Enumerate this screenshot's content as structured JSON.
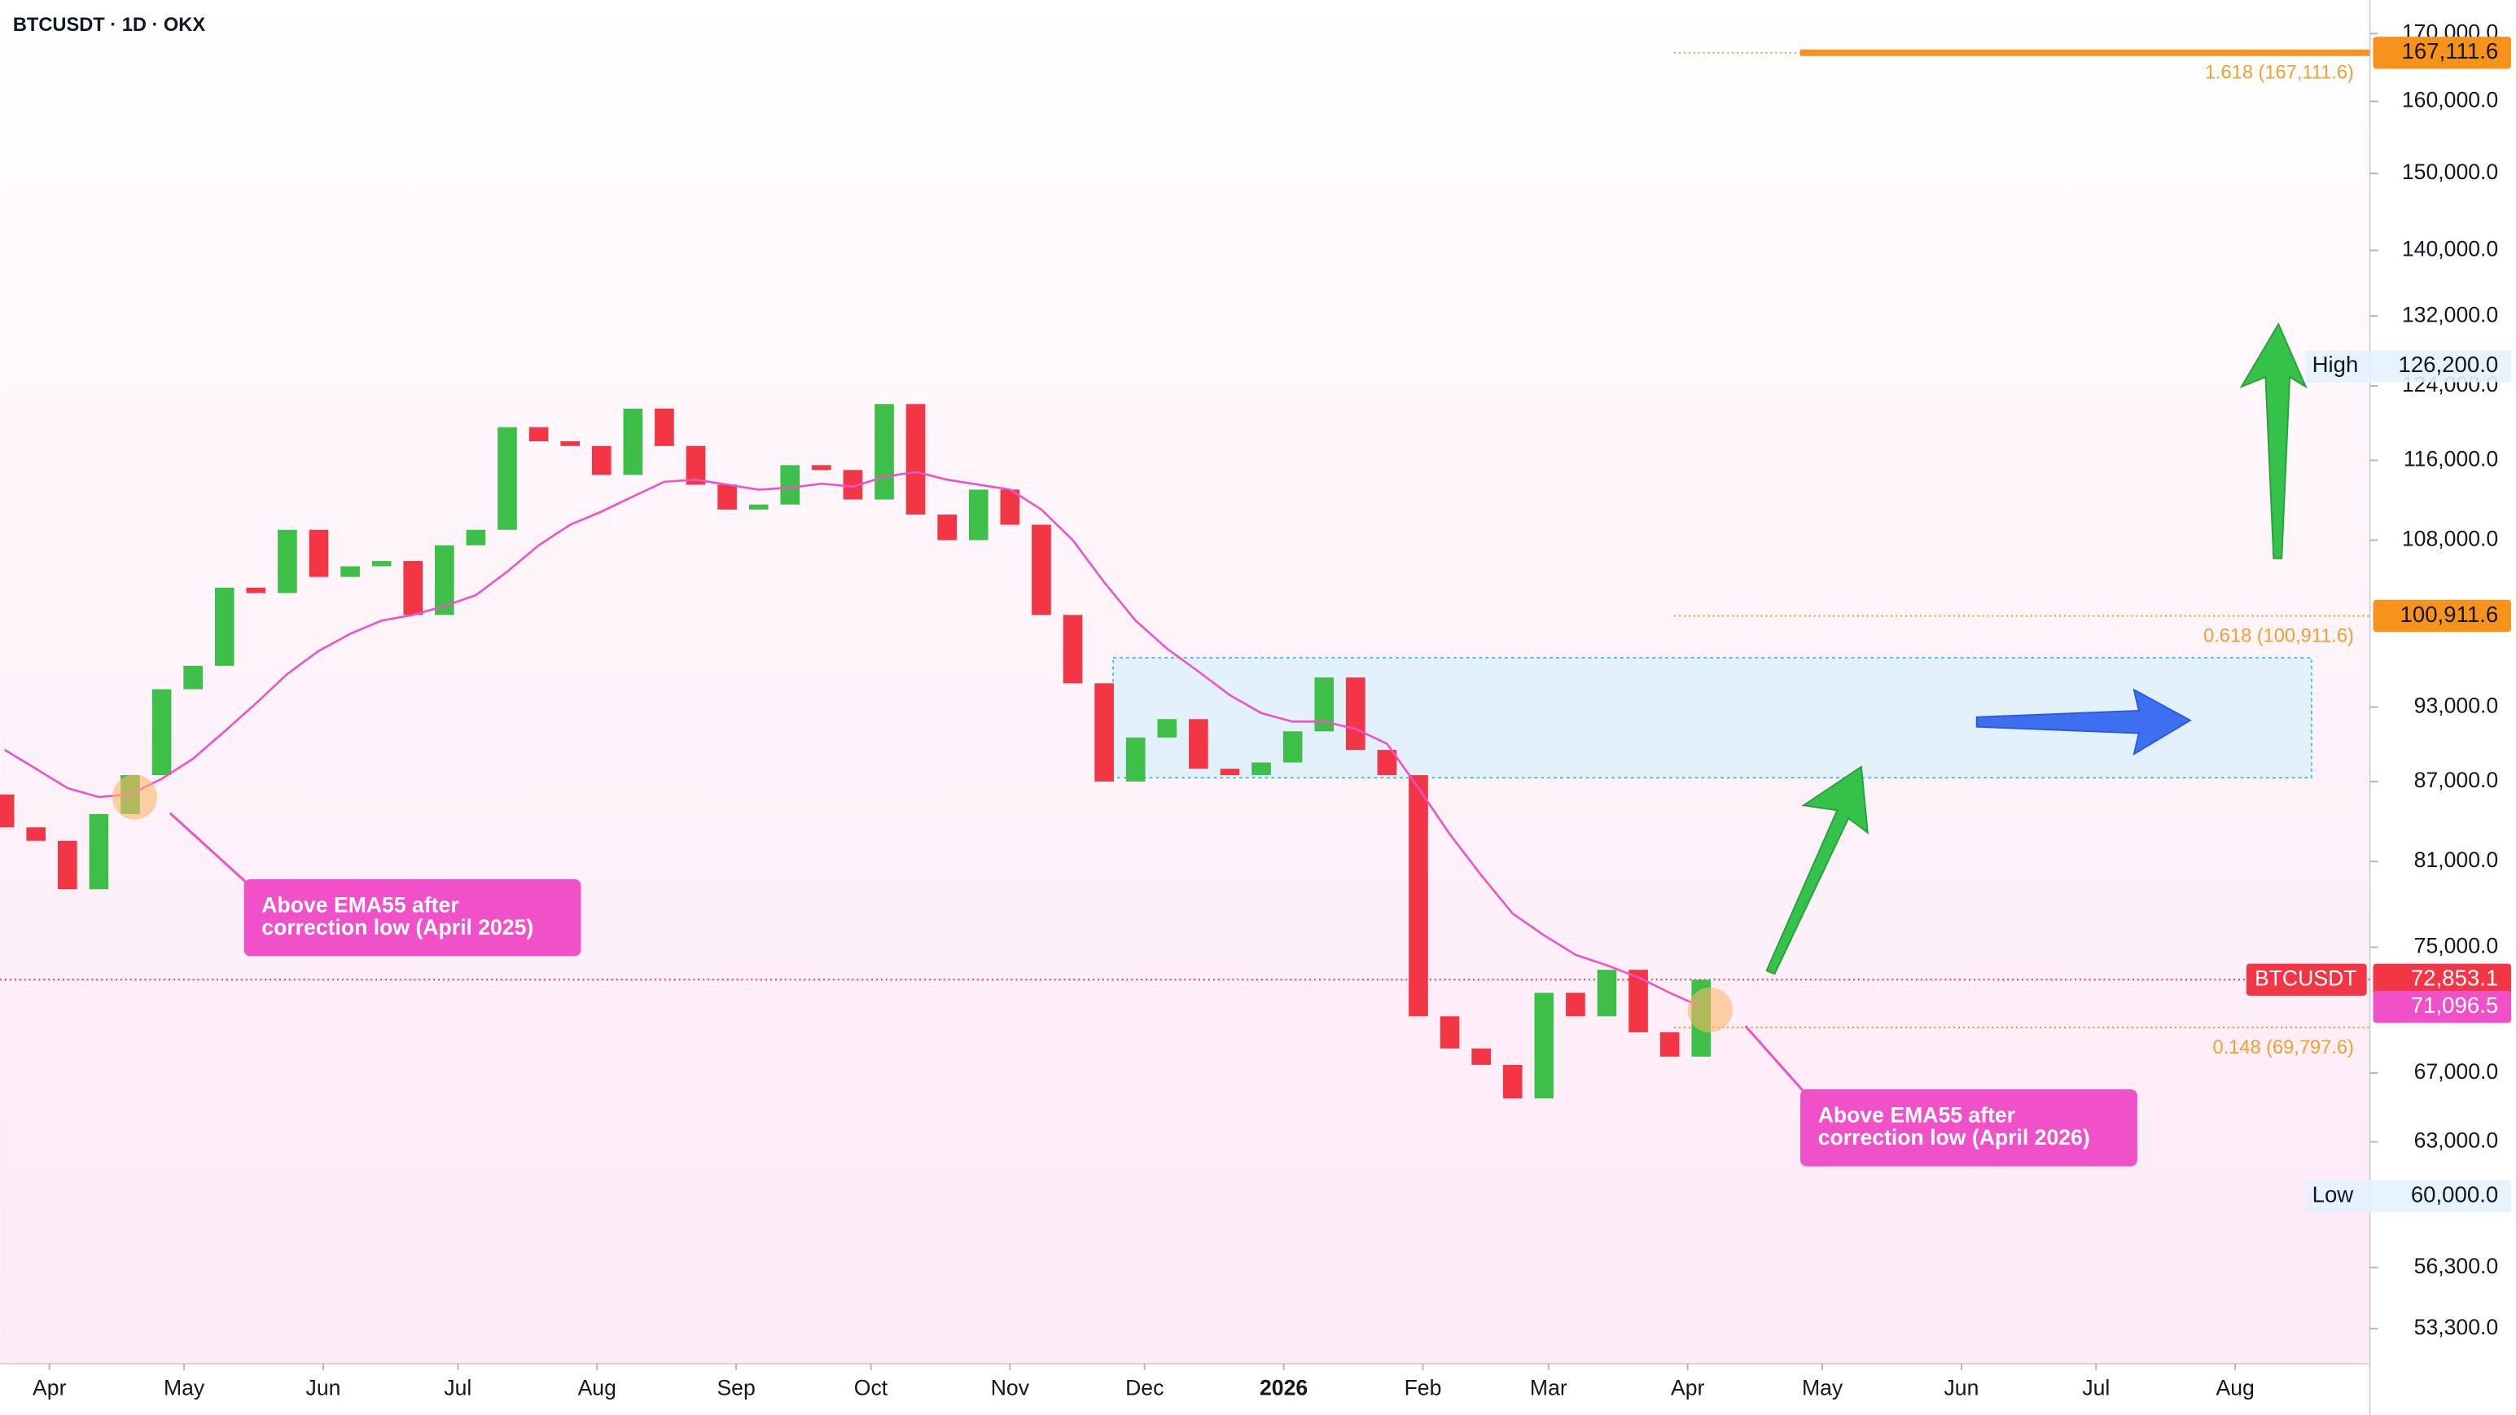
{
  "chart_data": {
    "type": "candlestick",
    "title": "BTCUSDT · 1D · OKX",
    "log_scale": true,
    "x": [
      -10,
      -3,
      4,
      11,
      18,
      25,
      32,
      39,
      46,
      53,
      60,
      67,
      74,
      81,
      88,
      95,
      102,
      109,
      116,
      123,
      130,
      137,
      144,
      151,
      158,
      165,
      172,
      179,
      186,
      193,
      200,
      207,
      214,
      221,
      228,
      235,
      242,
      249,
      256,
      263,
      270,
      277,
      284,
      291,
      298,
      305,
      312,
      319,
      326,
      333,
      340,
      347,
      354,
      361,
      368
    ],
    "open": [
      86000,
      83500,
      82500,
      79000,
      84500,
      87500,
      94500,
      96500,
      103500,
      103000,
      109000,
      104500,
      105500,
      106000,
      101000,
      107500,
      109000,
      119500,
      118000,
      117500,
      114500,
      121500,
      117500,
      113500,
      111000,
      111500,
      115500,
      115000,
      112000,
      122000,
      110500,
      108000,
      113000,
      109500,
      101000,
      95000,
      87000,
      90500,
      92000,
      88000,
      87500,
      88500,
      91000,
      95500,
      89500,
      87500,
      70500,
      68500,
      67500,
      65500,
      72000,
      70500,
      73500,
      69500,
      68000
    ],
    "high": {
      "name": "High",
      "value": 126200,
      "label": "126,200.0"
    },
    "low": {
      "name": "Low",
      "value": 60000,
      "label": "60,000.0"
    },
    "close": [
      83500,
      82500,
      79000,
      84500,
      87500,
      94500,
      96500,
      103500,
      103000,
      109000,
      104500,
      105500,
      106000,
      101000,
      107500,
      109000,
      119500,
      118000,
      117500,
      114500,
      121500,
      117500,
      113500,
      111000,
      111500,
      115500,
      115000,
      112000,
      122000,
      110500,
      108000,
      113000,
      109500,
      101000,
      95000,
      87000,
      90500,
      92000,
      88000,
      87500,
      88500,
      91000,
      95500,
      89500,
      87500,
      70500,
      68500,
      67500,
      65500,
      72000,
      70500,
      73500,
      69500,
      68000,
      72853.1
    ],
    "ema": [
      89500,
      88000,
      86500,
      85800,
      86000,
      87200,
      88800,
      91000,
      93300,
      95800,
      97800,
      99300,
      100500,
      101000,
      101800,
      102800,
      105000,
      107500,
      109500,
      110800,
      112300,
      113800,
      114000,
      113500,
      113000,
      113200,
      113600,
      113300,
      114300,
      114800,
      114000,
      113500,
      113000,
      111000,
      108000,
      104000,
      100500,
      98000,
      96000,
      94000,
      92500,
      91800,
      91800,
      91200,
      90000,
      86500,
      83000,
      80000,
      77300,
      75800,
      74500,
      73800,
      73000,
      72000,
      71096.5
    ],
    "colors": {
      "up": "#3dbf4a",
      "down": "#f23645",
      "ema": "#f050c8"
    },
    "xlim": [
      -11,
      517
    ],
    "ylim": [
      51650,
      175200
    ],
    "xticks": [
      {
        "value": 0,
        "label": "Apr"
      },
      {
        "value": 30,
        "label": "May"
      },
      {
        "value": 61,
        "label": "Jun"
      },
      {
        "value": 91,
        "label": "Jul"
      },
      {
        "value": 122,
        "label": "Aug"
      },
      {
        "value": 153,
        "label": "Sep"
      },
      {
        "value": 183,
        "label": "Oct"
      },
      {
        "value": 214,
        "label": "Nov"
      },
      {
        "value": 244,
        "label": "Dec"
      },
      {
        "value": 275,
        "label": "2026"
      },
      {
        "value": 306,
        "label": "Feb"
      },
      {
        "value": 334,
        "label": "Mar"
      },
      {
        "value": 365,
        "label": "Apr"
      },
      {
        "value": 395,
        "label": "May"
      },
      {
        "value": 426,
        "label": "Jun"
      },
      {
        "value": 456,
        "label": "Jul"
      },
      {
        "value": 487,
        "label": "Aug"
      }
    ],
    "yticks": [
      {
        "value": 170000,
        "label": "170,000.0"
      },
      {
        "value": 160000,
        "label": "160,000.0"
      },
      {
        "value": 150000,
        "label": "150,000.0"
      },
      {
        "value": 140000,
        "label": "140,000.0"
      },
      {
        "value": 132000,
        "label": "132,000.0"
      },
      {
        "value": 124000,
        "label": "124,000.0"
      },
      {
        "value": 116000,
        "label": "116,000.0"
      },
      {
        "value": 108000,
        "label": "108,000.0"
      },
      {
        "value": 93000,
        "label": "93,000.0"
      },
      {
        "value": 87000,
        "label": "87,000.0"
      },
      {
        "value": 81000,
        "label": "81,000.0"
      },
      {
        "value": 75000,
        "label": "75,000.0"
      },
      {
        "value": 67000,
        "label": "67,000.0"
      },
      {
        "value": 63000,
        "label": "63,000.0"
      },
      {
        "value": 56300,
        "label": "56,300.0"
      },
      {
        "value": 53300,
        "label": "53,300.0"
      }
    ],
    "fib_levels": [
      {
        "text": "1.618 (167,111.6)",
        "value": 167111.6,
        "axis_label": "167,111.6",
        "start": 362
      },
      {
        "text": "0.618 (100,911.6)",
        "value": 100911.6,
        "axis_label": "100,911.6",
        "start": 362
      },
      {
        "text": "0.148 (69,797.6)",
        "value": 69797.6,
        "start": 362
      }
    ],
    "zone": {
      "x": [
        237,
        504
      ],
      "y": [
        87300,
        97200
      ]
    },
    "current": {
      "name": "BTCUSDT",
      "value": 72853.1,
      "label": "72,853.1"
    },
    "ema_last": {
      "value": 71096.5,
      "label": "71,096.5"
    },
    "annotations": [
      {
        "lines": [
          "Above EMA55 after",
          "correction low (April 2025)"
        ],
        "x": 19,
        "y": 85800
      },
      {
        "lines": [
          "Above EMA55 after",
          "correction low (April 2026)"
        ],
        "x": 370,
        "y": 70900
      }
    ]
  }
}
